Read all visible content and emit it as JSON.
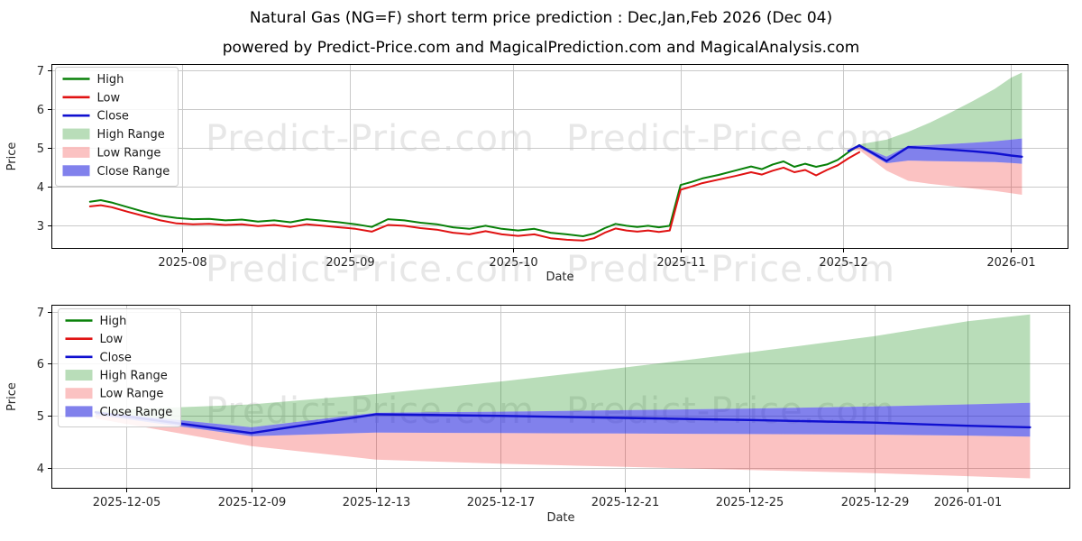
{
  "title": "Natural Gas (NG=F) short term price prediction : Dec,Jan,Feb 2026 (Dec 04)",
  "subtitle": "powered by Predict-Price.com and MagicalPrediction.com and MagicalAnalysis.com",
  "watermark": "Predict-Price.com",
  "colors": {
    "high": "#088008",
    "low": "#e01212",
    "close": "#1010d0",
    "high_range": "rgba(5,134,5,0.28)",
    "low_range": "rgba(240,10,10,0.25)",
    "close_range": "rgba(25,25,220,0.55)",
    "grid": "#c9c9c9",
    "spine": "#000000",
    "text": "#262626",
    "watermark": "#e7e7e7"
  },
  "legend": [
    {
      "label": "High",
      "type": "line",
      "color": "high"
    },
    {
      "label": "Low",
      "type": "line",
      "color": "low"
    },
    {
      "label": "Close",
      "type": "line",
      "color": "close"
    },
    {
      "label": "High Range",
      "type": "patch",
      "color": "high_range"
    },
    {
      "label": "Low Range",
      "type": "patch",
      "color": "low_range"
    },
    {
      "label": "Close Range",
      "type": "patch",
      "color": "close_range"
    }
  ],
  "chart_data": [
    {
      "type": "line",
      "title": "Natural Gas (NG=F) price history and 30-day prediction fan",
      "xlabel": "Date",
      "ylabel": "Price",
      "grid": true,
      "legend_position": "upper left",
      "xlim": [
        "2025-07-07T21:00:00Z",
        "2026-01-11T14:00:00Z"
      ],
      "ylim": [
        2.405,
        7.17
      ],
      "x_ticks": [
        {
          "date": "2025-08-01",
          "label": "2025-08"
        },
        {
          "date": "2025-09-01",
          "label": "2025-09"
        },
        {
          "date": "2025-10-01",
          "label": "2025-10"
        },
        {
          "date": "2025-11-01",
          "label": "2025-11"
        },
        {
          "date": "2025-12-01",
          "label": "2025-12"
        },
        {
          "date": "2026-01-01",
          "label": "2026-01"
        }
      ],
      "y_ticks": [
        3,
        4,
        5,
        6,
        7
      ],
      "history": {
        "dates": [
          "2025-07-15",
          "2025-07-17",
          "2025-07-19",
          "2025-07-22",
          "2025-07-25",
          "2025-07-28",
          "2025-07-31",
          "2025-08-03",
          "2025-08-06",
          "2025-08-09",
          "2025-08-12",
          "2025-08-15",
          "2025-08-18",
          "2025-08-21",
          "2025-08-24",
          "2025-08-27",
          "2025-08-30",
          "2025-09-02",
          "2025-09-05",
          "2025-09-08",
          "2025-09-11",
          "2025-09-14",
          "2025-09-17",
          "2025-09-20",
          "2025-09-23",
          "2025-09-26",
          "2025-09-29",
          "2025-10-02",
          "2025-10-05",
          "2025-10-08",
          "2025-10-11",
          "2025-10-14",
          "2025-10-16",
          "2025-10-18",
          "2025-10-20",
          "2025-10-22",
          "2025-10-24",
          "2025-10-26",
          "2025-10-28",
          "2025-10-30",
          "2025-11-01",
          "2025-11-03",
          "2025-11-05",
          "2025-11-08",
          "2025-11-11",
          "2025-11-14",
          "2025-11-16",
          "2025-11-18",
          "2025-11-20",
          "2025-11-22",
          "2025-11-24",
          "2025-11-26",
          "2025-11-28",
          "2025-11-30",
          "2025-12-02",
          "2025-12-04"
        ],
        "high": [
          3.62,
          3.66,
          3.6,
          3.48,
          3.36,
          3.26,
          3.2,
          3.17,
          3.18,
          3.14,
          3.16,
          3.11,
          3.14,
          3.09,
          3.17,
          3.13,
          3.09,
          3.04,
          2.97,
          3.17,
          3.14,
          3.08,
          3.04,
          2.96,
          2.92,
          3.0,
          2.92,
          2.88,
          2.92,
          2.82,
          2.78,
          2.73,
          2.8,
          2.94,
          3.05,
          3.0,
          2.97,
          3.0,
          2.96,
          3.0,
          4.05,
          4.13,
          4.22,
          4.31,
          4.42,
          4.53,
          4.46,
          4.58,
          4.66,
          4.52,
          4.6,
          4.52,
          4.58,
          4.7,
          4.9,
          5.08
        ],
        "low": [
          3.5,
          3.53,
          3.48,
          3.36,
          3.25,
          3.14,
          3.06,
          3.04,
          3.05,
          3.02,
          3.04,
          2.99,
          3.02,
          2.97,
          3.04,
          3.0,
          2.96,
          2.92,
          2.85,
          3.02,
          3.0,
          2.94,
          2.9,
          2.82,
          2.78,
          2.86,
          2.78,
          2.74,
          2.78,
          2.68,
          2.64,
          2.62,
          2.68,
          2.82,
          2.93,
          2.88,
          2.85,
          2.88,
          2.84,
          2.88,
          3.93,
          4.01,
          4.1,
          4.19,
          4.28,
          4.38,
          4.32,
          4.42,
          4.5,
          4.38,
          4.44,
          4.3,
          4.44,
          4.56,
          4.74,
          4.9
        ]
      },
      "prediction": {
        "dates": [
          "2025-12-02",
          "2025-12-04",
          "2025-12-09",
          "2025-12-13",
          "2025-12-17",
          "2025-12-21",
          "2025-12-25",
          "2025-12-29",
          "2026-01-01",
          "2026-01-03"
        ],
        "close": [
          4.93,
          5.07,
          4.67,
          5.03,
          5.0,
          4.96,
          4.92,
          4.87,
          4.81,
          4.78
        ],
        "close_hi": [
          4.93,
          5.08,
          4.78,
          5.06,
          5.08,
          5.11,
          5.14,
          5.18,
          5.22,
          5.25
        ],
        "close_lo": [
          4.93,
          5.02,
          4.61,
          4.68,
          4.67,
          4.66,
          4.65,
          4.64,
          4.62,
          4.6
        ],
        "high_top": [
          4.93,
          5.1,
          5.22,
          5.42,
          5.66,
          5.93,
          6.22,
          6.53,
          6.82,
          6.95
        ],
        "low_bot": [
          4.93,
          4.95,
          4.42,
          4.16,
          4.08,
          4.02,
          3.96,
          3.9,
          3.84,
          3.8
        ]
      }
    },
    {
      "type": "line",
      "title": "Prediction detail: Dec 2025 - Jan 2026",
      "xlabel": "Date",
      "ylabel": "Price",
      "grid": true,
      "legend_position": "upper left",
      "xlim": [
        "2025-12-02T14:00:00Z",
        "2026-01-04T07:00:00Z"
      ],
      "ylim": [
        3.6,
        7.135
      ],
      "x_ticks": [
        {
          "date": "2025-12-05",
          "label": "2025-12-05"
        },
        {
          "date": "2025-12-09",
          "label": "2025-12-09"
        },
        {
          "date": "2025-12-13",
          "label": "2025-12-13"
        },
        {
          "date": "2025-12-17",
          "label": "2025-12-17"
        },
        {
          "date": "2025-12-21",
          "label": "2025-12-21"
        },
        {
          "date": "2025-12-25",
          "label": "2025-12-25"
        },
        {
          "date": "2025-12-29",
          "label": "2025-12-29"
        },
        {
          "date": "2026-01-01",
          "label": "2026-01-01"
        }
      ],
      "y_ticks": [
        4,
        5,
        6,
        7
      ],
      "history": null,
      "prediction": {
        "dates": [
          "2025-12-04",
          "2025-12-09",
          "2025-12-13",
          "2025-12-17",
          "2025-12-21",
          "2025-12-25",
          "2025-12-29",
          "2026-01-01",
          "2026-01-03"
        ],
        "close": [
          5.07,
          4.67,
          5.03,
          5.0,
          4.96,
          4.92,
          4.87,
          4.81,
          4.78
        ],
        "close_hi": [
          5.08,
          4.78,
          5.06,
          5.08,
          5.11,
          5.14,
          5.18,
          5.22,
          5.25
        ],
        "close_lo": [
          5.02,
          4.61,
          4.68,
          4.67,
          4.66,
          4.65,
          4.64,
          4.62,
          4.6
        ],
        "high_top": [
          5.1,
          5.22,
          5.42,
          5.66,
          5.93,
          6.22,
          6.53,
          6.82,
          6.95
        ],
        "low_bot": [
          4.95,
          4.42,
          4.16,
          4.08,
          4.02,
          3.96,
          3.9,
          3.84,
          3.8
        ]
      }
    }
  ]
}
